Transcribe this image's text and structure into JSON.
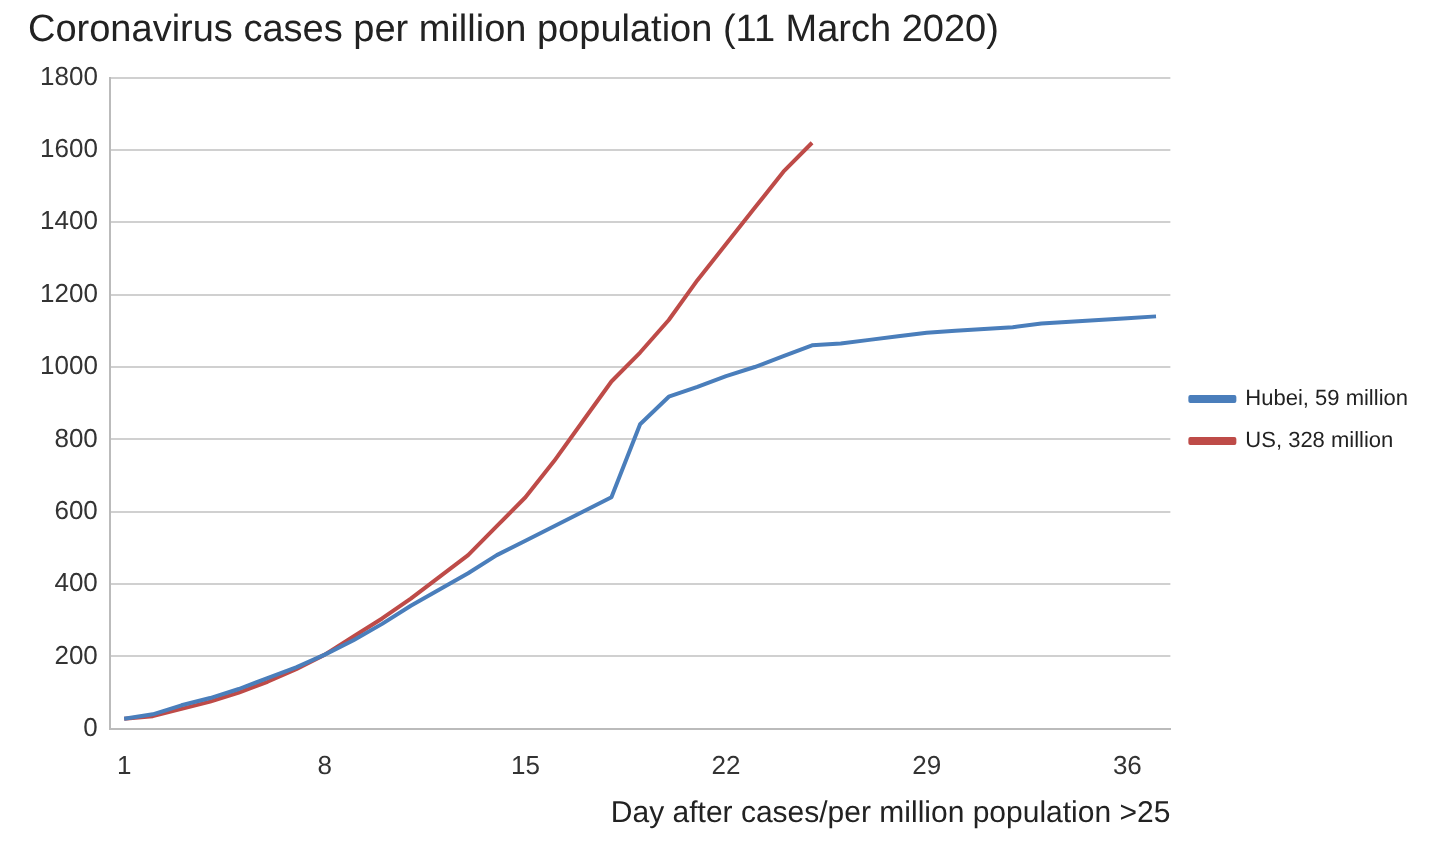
{
  "chart_data": {
    "type": "line",
    "title": "Coronavirus cases per million population (11 March 2020)",
    "xlabel": "Day after cases/per million population >25",
    "categories": [
      "1",
      null,
      null,
      null,
      null,
      null,
      null,
      "8",
      null,
      null,
      null,
      null,
      null,
      null,
      "15",
      null,
      null,
      null,
      null,
      null,
      null,
      "22",
      null,
      null,
      null,
      null,
      null,
      null,
      "29",
      null,
      null,
      null,
      null,
      null,
      null,
      "36",
      null
    ],
    "series": [
      {
        "name": "Hubei, 59 million",
        "color": "#4a7ebb",
        "values": [
          28,
          40,
          65,
          85,
          110,
          140,
          170,
          205,
          245,
          290,
          340,
          385,
          430,
          480,
          520,
          560,
          600,
          640,
          842,
          918,
          945,
          975,
          1000,
          1030,
          1060,
          1065,
          1075,
          1085,
          1095,
          1100,
          1105,
          1110,
          1120,
          1125,
          1130,
          1135,
          1140
        ]
      },
      {
        "name": "US, 328 million",
        "color": "#be4b48",
        "values": [
          28,
          35,
          55,
          75,
          100,
          130,
          165,
          205,
          255,
          305,
          360,
          420,
          480,
          560,
          640,
          740,
          850,
          960,
          1040,
          1130,
          1240,
          1340,
          1440,
          1540,
          1620,
          null,
          null,
          null,
          null,
          null,
          null,
          null,
          null,
          null,
          null,
          null,
          null
        ]
      }
    ],
    "ylim": [
      0,
      1800
    ],
    "yticks": [
      0,
      200,
      400,
      600,
      800,
      1000,
      1200,
      1400,
      1600,
      1800
    ],
    "grid": "y",
    "legend": "right",
    "marker": "none",
    "line_style": "solid"
  }
}
